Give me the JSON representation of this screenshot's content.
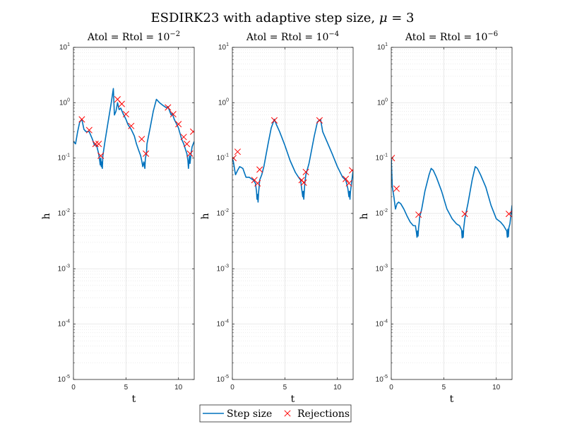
{
  "figure": {
    "title_main": "ESDIRK23 with adaptive step size, ",
    "title_mu": "μ",
    "title_eq": " = 3"
  },
  "legend": {
    "step_label": "Step size",
    "reject_label": "Rejections"
  },
  "colors": {
    "line": "#0072BD",
    "marker": "#FF0000",
    "grid": "#DFDFDF",
    "axis": "#262626"
  },
  "chart_data": [
    {
      "type": "line",
      "title": "Atol = Rtol = 10",
      "title_exp": "−2",
      "xlabel": "t",
      "ylabel": "h",
      "xlim": [
        0,
        11.5
      ],
      "ylim": [
        1e-05,
        10
      ],
      "yscale": "log",
      "grid": true,
      "xticks": [
        "0",
        "5",
        "10"
      ],
      "yticks": [
        {
          "base": "10",
          "exp": "-5"
        },
        {
          "base": "10",
          "exp": "-4"
        },
        {
          "base": "10",
          "exp": "-3"
        },
        {
          "base": "10",
          "exp": "-2"
        },
        {
          "base": "10",
          "exp": "-1"
        },
        {
          "base": "10",
          "exp": "0"
        },
        {
          "base": "10",
          "exp": "1"
        }
      ],
      "series": [
        {
          "role": "step",
          "x": [
            0,
            0.2,
            0.4,
            0.6,
            0.8,
            1.0,
            1.2,
            1.5,
            1.8,
            2.0,
            2.2,
            2.4,
            2.5,
            2.55,
            2.6,
            2.65,
            2.7,
            2.75,
            2.8,
            3.0,
            3.3,
            3.6,
            3.8,
            3.9,
            4.05,
            4.2,
            4.35,
            4.5,
            4.7,
            5.0,
            5.2,
            5.5,
            5.8,
            6.0,
            6.2,
            6.4,
            6.5,
            6.6,
            6.7,
            6.8,
            6.85,
            6.9,
            6.95,
            7.0,
            7.3,
            7.6,
            7.9,
            8.2,
            8.5,
            8.9,
            9.0,
            9.3,
            9.4,
            9.6,
            10.0,
            10.3,
            10.5,
            10.8,
            10.9,
            10.95,
            11.0,
            11.05,
            11.1,
            11.2,
            11.3,
            11.5
          ],
          "y": [
            0.2,
            0.18,
            0.3,
            0.45,
            0.5,
            0.33,
            0.3,
            0.3,
            0.22,
            0.17,
            0.17,
            0.12,
            0.09,
            0.075,
            0.1,
            0.07,
            0.085,
            0.065,
            0.11,
            0.2,
            0.45,
            1.0,
            1.8,
            0.6,
            0.7,
            1.0,
            0.75,
            0.8,
            0.65,
            0.5,
            0.4,
            0.33,
            0.25,
            0.18,
            0.14,
            0.11,
            0.09,
            0.07,
            0.085,
            0.065,
            0.1,
            0.11,
            0.12,
            0.18,
            0.35,
            0.7,
            1.15,
            1.0,
            0.9,
            0.8,
            0.85,
            0.6,
            0.65,
            0.5,
            0.35,
            0.22,
            0.18,
            0.12,
            0.09,
            0.065,
            0.085,
            0.11,
            0.08,
            0.12,
            0.16,
            0.2
          ]
        },
        {
          "role": "rejections",
          "x": [
            0.8,
            1.5,
            2.1,
            2.4,
            2.6,
            4.2,
            4.6,
            5.0,
            5.5,
            6.5,
            6.9,
            9.0,
            9.5,
            10.0,
            10.5,
            10.8,
            11.1,
            11.4
          ],
          "y": [
            0.5,
            0.32,
            0.18,
            0.18,
            0.11,
            1.15,
            0.95,
            0.62,
            0.38,
            0.22,
            0.12,
            0.82,
            0.62,
            0.41,
            0.24,
            0.18,
            0.12,
            0.3
          ]
        }
      ]
    },
    {
      "type": "line",
      "title": "Atol = Rtol = 10",
      "title_exp": "−4",
      "xlabel": "t",
      "ylabel": "h",
      "xlim": [
        0,
        11.5
      ],
      "ylim": [
        1e-05,
        10
      ],
      "yscale": "log",
      "grid": true,
      "xticks": [
        "0",
        "5",
        "10"
      ],
      "yticks": [
        {
          "base": "10",
          "exp": "-5"
        },
        {
          "base": "10",
          "exp": "-4"
        },
        {
          "base": "10",
          "exp": "-3"
        },
        {
          "base": "10",
          "exp": "-2"
        },
        {
          "base": "10",
          "exp": "-1"
        },
        {
          "base": "10",
          "exp": "0"
        },
        {
          "base": "10",
          "exp": "1"
        }
      ],
      "series": [
        {
          "role": "step",
          "x": [
            0,
            0.1,
            0.3,
            0.5,
            0.7,
            1.0,
            1.3,
            1.6,
            2.0,
            2.2,
            2.3,
            2.35,
            2.4,
            2.45,
            2.5,
            2.55,
            2.6,
            2.8,
            3.0,
            3.4,
            3.7,
            4.0,
            4.2,
            4.5,
            5.0,
            5.5,
            6.0,
            6.3,
            6.5,
            6.6,
            6.7,
            6.75,
            6.8,
            6.85,
            6.9,
            7.0,
            7.3,
            7.8,
            8.1,
            8.4,
            8.6,
            9.0,
            9.5,
            10.0,
            10.5,
            10.8,
            11.0,
            11.1,
            11.15,
            11.2,
            11.25,
            11.3,
            11.5
          ],
          "y": [
            0.1,
            0.085,
            0.05,
            0.06,
            0.07,
            0.065,
            0.045,
            0.045,
            0.04,
            0.035,
            0.025,
            0.018,
            0.022,
            0.016,
            0.024,
            0.03,
            0.04,
            0.05,
            0.07,
            0.18,
            0.35,
            0.5,
            0.4,
            0.3,
            0.17,
            0.09,
            0.055,
            0.045,
            0.04,
            0.028,
            0.02,
            0.025,
            0.018,
            0.025,
            0.035,
            0.05,
            0.08,
            0.25,
            0.45,
            0.5,
            0.3,
            0.2,
            0.12,
            0.07,
            0.045,
            0.04,
            0.028,
            0.02,
            0.025,
            0.018,
            0.025,
            0.03,
            0.06
          ]
        },
        {
          "role": "rejections",
          "x": [
            0.1,
            0.5,
            2.1,
            2.4,
            2.6,
            4.0,
            6.6,
            6.8,
            7.0,
            8.3,
            10.8,
            11.1,
            11.4
          ],
          "y": [
            0.1,
            0.13,
            0.04,
            0.035,
            0.062,
            0.48,
            0.04,
            0.036,
            0.056,
            0.48,
            0.042,
            0.035,
            0.06
          ]
        }
      ]
    },
    {
      "type": "line",
      "title": "Atol = Rtol = 10",
      "title_exp": "−6",
      "xlabel": "t",
      "ylabel": "h",
      "xlim": [
        0,
        11.5
      ],
      "ylim": [
        1e-05,
        10
      ],
      "yscale": "log",
      "grid": true,
      "xticks": [
        "0",
        "5",
        "10"
      ],
      "yticks": [
        {
          "base": "10",
          "exp": "-5"
        },
        {
          "base": "10",
          "exp": "-4"
        },
        {
          "base": "10",
          "exp": "-3"
        },
        {
          "base": "10",
          "exp": "-2"
        },
        {
          "base": "10",
          "exp": "-1"
        },
        {
          "base": "10",
          "exp": "0"
        },
        {
          "base": "10",
          "exp": "1"
        }
      ],
      "series": [
        {
          "role": "step",
          "x": [
            0,
            0.1,
            0.25,
            0.4,
            0.55,
            0.7,
            0.9,
            1.2,
            1.5,
            1.8,
            2.1,
            2.3,
            2.4,
            2.45,
            2.5,
            2.55,
            2.6,
            2.65,
            2.7,
            2.9,
            3.2,
            3.6,
            3.8,
            4.0,
            4.3,
            4.8,
            5.3,
            5.8,
            6.2,
            6.5,
            6.7,
            6.75,
            6.8,
            6.85,
            6.9,
            6.95,
            7.0,
            7.3,
            7.7,
            8.0,
            8.2,
            8.5,
            9.0,
            9.5,
            10.0,
            10.4,
            10.7,
            11.0,
            11.05,
            11.1,
            11.15,
            11.2,
            11.3,
            11.5
          ],
          "y": [
            0.1,
            0.03,
            0.02,
            0.012,
            0.015,
            0.016,
            0.015,
            0.012,
            0.009,
            0.007,
            0.006,
            0.006,
            0.0045,
            0.0037,
            0.0048,
            0.0039,
            0.0055,
            0.0065,
            0.0085,
            0.012,
            0.025,
            0.05,
            0.065,
            0.06,
            0.045,
            0.025,
            0.012,
            0.008,
            0.0065,
            0.006,
            0.005,
            0.0036,
            0.0048,
            0.0037,
            0.0055,
            0.0065,
            0.008,
            0.015,
            0.04,
            0.07,
            0.065,
            0.05,
            0.03,
            0.014,
            0.008,
            0.007,
            0.006,
            0.0048,
            0.0037,
            0.0052,
            0.0038,
            0.0055,
            0.0065,
            0.014
          ]
        },
        {
          "role": "rejections",
          "x": [
            0.05,
            0.5,
            2.6,
            7.0,
            11.2
          ],
          "y": [
            0.1,
            0.028,
            0.0095,
            0.0098,
            0.0098
          ]
        }
      ]
    }
  ]
}
